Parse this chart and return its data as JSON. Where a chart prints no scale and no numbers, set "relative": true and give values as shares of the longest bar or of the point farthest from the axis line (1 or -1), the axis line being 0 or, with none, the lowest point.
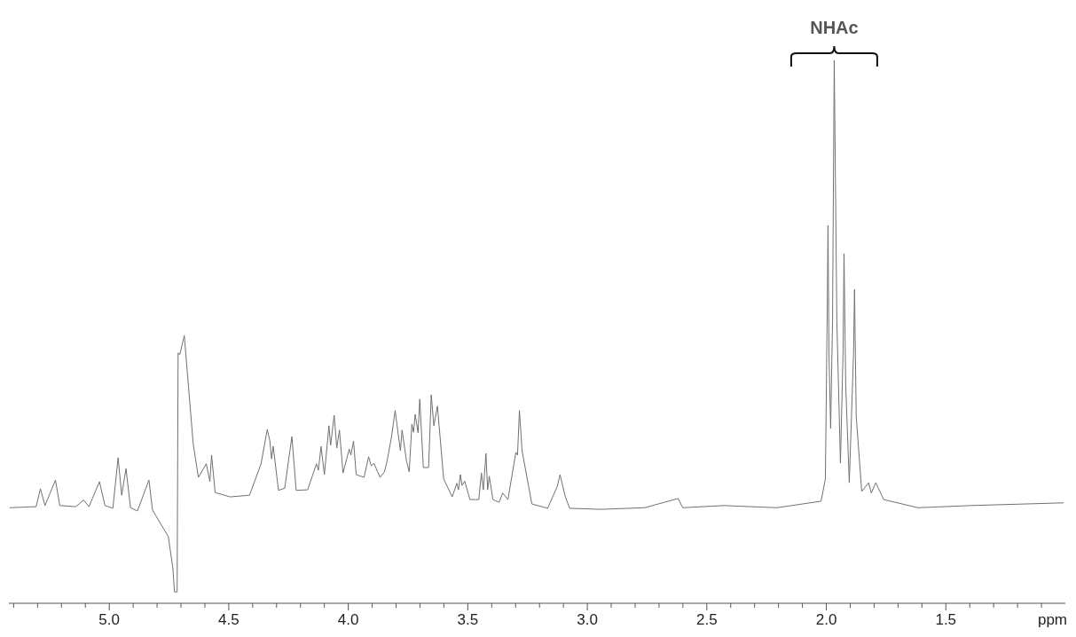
{
  "chart_data": {
    "type": "line",
    "xlabel": "ppm",
    "relative": true,
    "annotations": [
      "NHAc"
    ],
    "xlim": [
      5.42,
      1.0
    ],
    "xticks": [
      {
        "value": 5.4,
        "label": null
      },
      {
        "value": 5.3,
        "label": null
      },
      {
        "value": 5.2,
        "label": null
      },
      {
        "value": 5.1,
        "label": null
      },
      {
        "value": 5.0,
        "label": "5.0"
      },
      {
        "value": 4.9,
        "label": null
      },
      {
        "value": 4.8,
        "label": null
      },
      {
        "value": 4.7,
        "label": null
      },
      {
        "value": 4.6,
        "label": null
      },
      {
        "value": 4.5,
        "label": "4.5"
      },
      {
        "value": 4.4,
        "label": null
      },
      {
        "value": 4.3,
        "label": null
      },
      {
        "value": 4.2,
        "label": null
      },
      {
        "value": 4.1,
        "label": null
      },
      {
        "value": 4.0,
        "label": "4.0"
      },
      {
        "value": 3.9,
        "label": null
      },
      {
        "value": 3.8,
        "label": null
      },
      {
        "value": 3.7,
        "label": null
      },
      {
        "value": 3.6,
        "label": null
      },
      {
        "value": 3.5,
        "label": "3.5"
      },
      {
        "value": 3.4,
        "label": null
      },
      {
        "value": 3.3,
        "label": null
      },
      {
        "value": 3.2,
        "label": null
      },
      {
        "value": 3.1,
        "label": null
      },
      {
        "value": 3.0,
        "label": "3.0"
      },
      {
        "value": 2.9,
        "label": null
      },
      {
        "value": 2.8,
        "label": null
      },
      {
        "value": 2.7,
        "label": null
      },
      {
        "value": 2.6,
        "label": null
      },
      {
        "value": 2.5,
        "label": "2.5"
      },
      {
        "value": 2.4,
        "label": null
      },
      {
        "value": 2.3,
        "label": null
      },
      {
        "value": 2.2,
        "label": null
      },
      {
        "value": 2.1,
        "label": null
      },
      {
        "value": 2.0,
        "label": "2.0"
      },
      {
        "value": 1.9,
        "label": null
      },
      {
        "value": 1.8,
        "label": null
      },
      {
        "value": 1.7,
        "label": null
      },
      {
        "value": 1.6,
        "label": null
      },
      {
        "value": 1.5,
        "label": "1.5"
      },
      {
        "value": 1.4,
        "label": null
      },
      {
        "value": 1.3,
        "label": null
      },
      {
        "value": 1.2,
        "label": null
      },
      {
        "value": 1.1,
        "label": null
      }
    ],
    "x": [
      5.417,
      5.306,
      5.288,
      5.269,
      5.225,
      5.207,
      5.14,
      5.107,
      5.085,
      5.041,
      5.018,
      4.985,
      4.963,
      4.948,
      4.93,
      4.911,
      4.882,
      4.834,
      4.819,
      4.79,
      4.753,
      4.734,
      4.727,
      4.716,
      4.712,
      4.705,
      4.686,
      4.649,
      4.627,
      4.594,
      4.579,
      4.572,
      4.557,
      4.494,
      4.413,
      4.365,
      4.339,
      4.328,
      4.321,
      4.314,
      4.292,
      4.266,
      4.236,
      4.218,
      4.17,
      4.133,
      4.125,
      4.114,
      4.1,
      4.081,
      4.074,
      4.059,
      4.048,
      4.037,
      4.022,
      3.996,
      3.989,
      3.978,
      3.967,
      3.934,
      3.915,
      3.904,
      3.893,
      3.867,
      3.849,
      3.838,
      3.819,
      3.804,
      3.782,
      3.775,
      3.756,
      3.745,
      3.734,
      3.727,
      3.72,
      3.708,
      3.701,
      3.686,
      3.664,
      3.653,
      3.642,
      3.627,
      3.62,
      3.601,
      3.565,
      3.546,
      3.539,
      3.531,
      3.524,
      3.513,
      3.491,
      3.454,
      3.443,
      3.435,
      3.424,
      3.417,
      3.41,
      3.395,
      3.369,
      3.354,
      3.332,
      3.299,
      3.292,
      3.284,
      3.273,
      3.232,
      3.166,
      3.125,
      3.114,
      3.092,
      3.074,
      2.945,
      2.76,
      2.62,
      2.601,
      2.428,
      2.207,
      2.022,
      2.004,
      1.996,
      1.993,
      1.989,
      1.982,
      1.974,
      1.967,
      1.956,
      1.941,
      1.93,
      1.926,
      1.919,
      1.904,
      1.886,
      1.882,
      1.875,
      1.852,
      1.823,
      1.812,
      1.793,
      1.76,
      1.616,
      1.395,
      1.007
    ],
    "series": [
      {
        "color": "#707070",
        "values": [
          0.176,
          0.178,
          0.211,
          0.18,
          0.227,
          0.18,
          0.178,
          0.19,
          0.178,
          0.224,
          0.18,
          0.175,
          0.268,
          0.199,
          0.248,
          0.176,
          0.17,
          0.227,
          0.172,
          0.15,
          0.123,
          0.065,
          0.021,
          0.021,
          0.461,
          0.458,
          0.493,
          0.294,
          0.232,
          0.257,
          0.224,
          0.273,
          0.204,
          0.196,
          0.199,
          0.257,
          0.32,
          0.299,
          0.266,
          0.289,
          0.208,
          0.212,
          0.307,
          0.208,
          0.209,
          0.257,
          0.245,
          0.289,
          0.237,
          0.327,
          0.291,
          0.346,
          0.286,
          0.319,
          0.24,
          0.284,
          0.273,
          0.299,
          0.237,
          0.232,
          0.27,
          0.253,
          0.258,
          0.232,
          0.242,
          0.261,
          0.307,
          0.355,
          0.281,
          0.319,
          0.261,
          0.242,
          0.33,
          0.315,
          0.348,
          0.314,
          0.376,
          0.25,
          0.25,
          0.384,
          0.327,
          0.363,
          0.327,
          0.229,
          0.196,
          0.221,
          0.209,
          0.237,
          0.217,
          0.225,
          0.191,
          0.191,
          0.24,
          0.209,
          0.276,
          0.209,
          0.234,
          0.191,
          0.186,
          0.203,
          0.191,
          0.278,
          0.273,
          0.355,
          0.281,
          0.183,
          0.175,
          0.216,
          0.237,
          0.196,
          0.175,
          0.173,
          0.176,
          0.193,
          0.176,
          0.18,
          0.176,
          0.188,
          0.229,
          0.549,
          0.696,
          0.462,
          0.322,
          0.521,
          1,
          0.521,
          0.258,
          0.462,
          0.644,
          0.404,
          0.222,
          0.462,
          0.578,
          0.345,
          0.206,
          0.222,
          0.203,
          0.222,
          0.191,
          0.176,
          0.18,
          0.185
        ]
      }
    ]
  }
}
